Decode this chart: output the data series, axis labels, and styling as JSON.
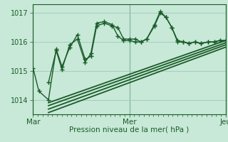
{
  "title": "Pression niveau de la mer( hPa )",
  "bg_color": "#c8e8d8",
  "plot_bg_color": "#c8e8d8",
  "grid_color": "#99ccbb",
  "line_color": "#1a5c28",
  "ylim": [
    1013.5,
    1017.3
  ],
  "yticks": [
    1014,
    1015,
    1016,
    1017
  ],
  "xlabel_ticks": [
    "Mar",
    "Mer",
    "Jeu"
  ],
  "xlabel_tick_pos": [
    0.0,
    0.5,
    1.0
  ],
  "series": [
    {
      "x": [
        0.0,
        0.03,
        0.08,
        0.12,
        0.15,
        0.19,
        0.23,
        0.27,
        0.3,
        0.33,
        0.37,
        0.41,
        0.44,
        0.47,
        0.5,
        0.53,
        0.56,
        0.59,
        0.63,
        0.66,
        0.69,
        0.72,
        0.75,
        0.78,
        0.81,
        0.84,
        0.87,
        0.91,
        0.94,
        0.97,
        1.0
      ],
      "y": [
        1015.1,
        1014.3,
        1014.0,
        1015.75,
        1015.15,
        1015.8,
        1016.25,
        1015.4,
        1015.5,
        1016.55,
        1016.65,
        1016.55,
        1016.5,
        1016.1,
        1016.1,
        1016.1,
        1016.0,
        1016.1,
        1016.6,
        1017.05,
        1016.85,
        1016.5,
        1016.05,
        1016.0,
        1015.95,
        1016.0,
        1015.95,
        1016.0,
        1016.0,
        1016.05,
        1016.05
      ],
      "marker": "+",
      "markersize": 4,
      "linewidth": 1.0
    },
    {
      "x": [
        0.08,
        0.12,
        0.15,
        0.19,
        0.23,
        0.27,
        0.3,
        0.33,
        0.37,
        0.41,
        0.44,
        0.47,
        0.5,
        0.53,
        0.56,
        0.59,
        0.63,
        0.66,
        0.69,
        0.72,
        0.75,
        0.78,
        0.81,
        0.84,
        0.87,
        0.91,
        0.94,
        0.97,
        1.0
      ],
      "y": [
        1014.6,
        1015.7,
        1015.05,
        1015.9,
        1016.1,
        1015.3,
        1015.6,
        1016.65,
        1016.7,
        1016.6,
        1016.2,
        1016.05,
        1016.05,
        1016.0,
        1016.0,
        1016.1,
        1016.55,
        1017.0,
        1016.85,
        1016.5,
        1016.0,
        1016.0,
        1015.95,
        1016.0,
        1015.95,
        1016.0,
        1016.0,
        1016.05,
        1016.05
      ],
      "marker": "+",
      "markersize": 4,
      "linewidth": 1.0
    },
    {
      "x": [
        0.08,
        1.0
      ],
      "y": [
        1013.9,
        1016.05
      ],
      "marker": null,
      "linewidth": 1.3
    },
    {
      "x": [
        0.08,
        1.0
      ],
      "y": [
        1013.8,
        1015.97
      ],
      "marker": null,
      "linewidth": 1.3
    },
    {
      "x": [
        0.08,
        1.0
      ],
      "y": [
        1013.68,
        1015.9
      ],
      "marker": null,
      "linewidth": 1.3
    },
    {
      "x": [
        0.08,
        1.0
      ],
      "y": [
        1013.56,
        1015.82
      ],
      "marker": null,
      "linewidth": 1.3
    }
  ]
}
